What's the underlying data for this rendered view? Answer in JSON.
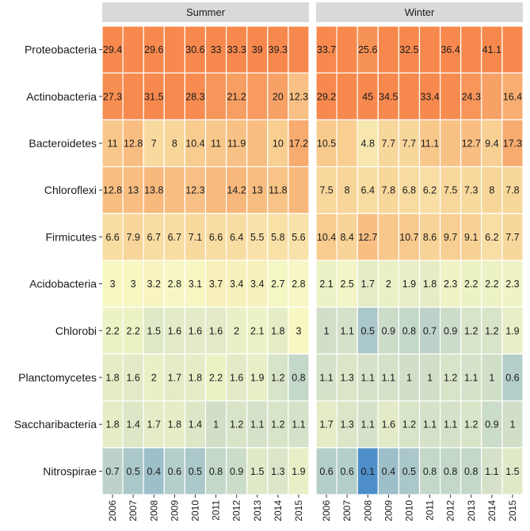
{
  "chart_data": {
    "type": "heatmap",
    "title": "",
    "xlabel": "",
    "ylabel": "",
    "years": [
      "2006",
      "2007",
      "2008",
      "2009",
      "2010",
      "2011",
      "2012",
      "2013",
      "2014",
      "2015"
    ],
    "phyla": [
      "Proteobacteria",
      "Actinobacteria",
      "Bacteroidetes",
      "Chloroflexi",
      "Firmicutes",
      "Acidobacteria",
      "Chlorobi",
      "Planctomycetes",
      "Saccharibacteria",
      "Nitrospirae"
    ],
    "panels": [
      {
        "name": "Summer",
        "values": [
          [
            29.4,
            30.0,
            29.6,
            30.0,
            30.6,
            33,
            33.3,
            39,
            39.3,
            35.0
          ],
          [
            27.3,
            29.0,
            31.5,
            29.0,
            28.3,
            24.0,
            21.2,
            22.0,
            20,
            12.3
          ],
          [
            11,
            12.8,
            7,
            8,
            10.4,
            11,
            11.9,
            13.0,
            10,
            17.2
          ],
          [
            12.8,
            13,
            13.8,
            13.0,
            12.3,
            13.5,
            14.2,
            13,
            11.8,
            14.0
          ],
          [
            6.6,
            7.9,
            6.7,
            6.7,
            7.1,
            6.6,
            6.4,
            5.5,
            5.8,
            5.6
          ],
          [
            3,
            3,
            3.2,
            2.8,
            3.1,
            3.7,
            3.4,
            3.4,
            2.7,
            2.8
          ],
          [
            2.2,
            2.2,
            1.5,
            1.6,
            1.6,
            1.6,
            2,
            2.1,
            1.8,
            3
          ],
          [
            1.8,
            1.6,
            2,
            1.7,
            1.8,
            2.2,
            1.6,
            1.9,
            1.2,
            0.8
          ],
          [
            1.8,
            1.4,
            1.7,
            1.8,
            1.4,
            1,
            1.2,
            1.1,
            1.2,
            1.1
          ],
          [
            0.7,
            0.5,
            0.4,
            0.6,
            0.5,
            0.8,
            0.9,
            1.5,
            1.3,
            1.9
          ]
        ],
        "labels": [
          [
            "29.4",
            "",
            "29.6",
            "",
            "30.6",
            "33",
            "33.3",
            "39",
            "39.3",
            ""
          ],
          [
            "27.3",
            "",
            "31.5",
            "",
            "28.3",
            "",
            "21.2",
            "",
            "20",
            "12.3"
          ],
          [
            "11",
            "12.8",
            "7",
            "8",
            "10.4",
            "11",
            "11.9",
            "",
            "10",
            "17.2"
          ],
          [
            "12.8",
            "13",
            "13.8",
            "",
            "12.3",
            "",
            "14.2",
            "13",
            "11.8",
            ""
          ],
          [
            "6.6",
            "7.9",
            "6.7",
            "6.7",
            "7.1",
            "6.6",
            "6.4",
            "5.5",
            "5.8",
            "5.6"
          ],
          [
            "3",
            "3",
            "3.2",
            "2.8",
            "3.1",
            "3.7",
            "3.4",
            "3.4",
            "2.7",
            "2.8"
          ],
          [
            "2.2",
            "2.2",
            "1.5",
            "1.6",
            "1.6",
            "1.6",
            "2",
            "2.1",
            "1.8",
            "3"
          ],
          [
            "1.8",
            "1.6",
            "2",
            "1.7",
            "1.8",
            "2.2",
            "1.6",
            "1.9",
            "1.2",
            "0.8"
          ],
          [
            "1.8",
            "1.4",
            "1.7",
            "1.8",
            "1.4",
            "1",
            "1.2",
            "1.1",
            "1.2",
            "1.1"
          ],
          [
            "0.7",
            "0.5",
            "0.4",
            "0.6",
            "0.5",
            "0.8",
            "0.9",
            "1.5",
            "1.3",
            "1.9"
          ]
        ]
      },
      {
        "name": "Winter",
        "values": [
          [
            33.7,
            30.0,
            25.6,
            30.0,
            32.5,
            34.0,
            36.4,
            38.0,
            41.1,
            38.0
          ],
          [
            29.2,
            40.0,
            45,
            34.5,
            34.0,
            33.4,
            28.0,
            24.3,
            20.0,
            16.4
          ],
          [
            10.5,
            10.0,
            4.8,
            7.7,
            7.7,
            11.1,
            12.0,
            12.7,
            9.4,
            17.3
          ],
          [
            7.5,
            8,
            6.4,
            7.8,
            6.8,
            6.2,
            7.5,
            7.3,
            8,
            7.8
          ],
          [
            10.4,
            8.4,
            12.7,
            11.0,
            10.7,
            8.6,
            9.7,
            9.1,
            6.2,
            7.7
          ],
          [
            2.1,
            2.5,
            1.7,
            2,
            1.9,
            1.8,
            2.3,
            2.2,
            2.2,
            2.3
          ],
          [
            1,
            1.1,
            0.5,
            0.9,
            0.8,
            0.7,
            0.9,
            1.2,
            1.2,
            1.9
          ],
          [
            1.1,
            1.3,
            1.1,
            1.1,
            1,
            1,
            1.2,
            1.1,
            1,
            0.6
          ],
          [
            1.7,
            1.3,
            1.1,
            1.6,
            1.2,
            1.1,
            1.1,
            1.2,
            0.9,
            1
          ],
          [
            0.6,
            0.6,
            0.1,
            0.4,
            0.5,
            0.8,
            0.8,
            0.8,
            1.1,
            1.5
          ]
        ],
        "labels": [
          [
            "33.7",
            "",
            "25.6",
            "",
            "32.5",
            "",
            "36.4",
            "",
            "41.1",
            ""
          ],
          [
            "29.2",
            "",
            "45",
            "34.5",
            "",
            "33.4",
            "",
            "24.3",
            "",
            "16.4"
          ],
          [
            "10.5",
            "",
            "4.8",
            "7.7",
            "7.7",
            "11.1",
            "",
            "12.7",
            "9.4",
            "17.3"
          ],
          [
            "7.5",
            "8",
            "6.4",
            "7.8",
            "6.8",
            "6.2",
            "7.5",
            "7.3",
            "8",
            "7.8"
          ],
          [
            "10.4",
            "8.4",
            "12.7",
            "",
            "10.7",
            "8.6",
            "9.7",
            "9.1",
            "6.2",
            "7.7"
          ],
          [
            "2.1",
            "2.5",
            "1.7",
            "2",
            "1.9",
            "1.8",
            "2.3",
            "2.2",
            "2.2",
            "2.3"
          ],
          [
            "1",
            "1.1",
            "0.5",
            "0.9",
            "0.8",
            "0.7",
            "0.9",
            "1.2",
            "1.2",
            "1.9"
          ],
          [
            "1.1",
            "1.3",
            "1.1",
            "1.1",
            "1",
            "1",
            "1.2",
            "1.1",
            "1",
            "0.6"
          ],
          [
            "1.7",
            "1.3",
            "1.1",
            "1.6",
            "1.2",
            "1.1",
            "1.1",
            "1.2",
            "0.9",
            "1"
          ],
          [
            "0.6",
            "0.6",
            "0.1",
            "0.4",
            "0.5",
            "0.8",
            "0.8",
            "0.8",
            "1.1",
            "1.5"
          ]
        ]
      }
    ],
    "grid": false,
    "legend": "none",
    "colors": {
      "strip_background": "#d9d9d9",
      "cell_border": "#ffffff",
      "scale": [
        "#4e8fc9",
        "#d2e0c9",
        "#f7f8c4",
        "#f8cf92",
        "#f7894e"
      ]
    }
  }
}
